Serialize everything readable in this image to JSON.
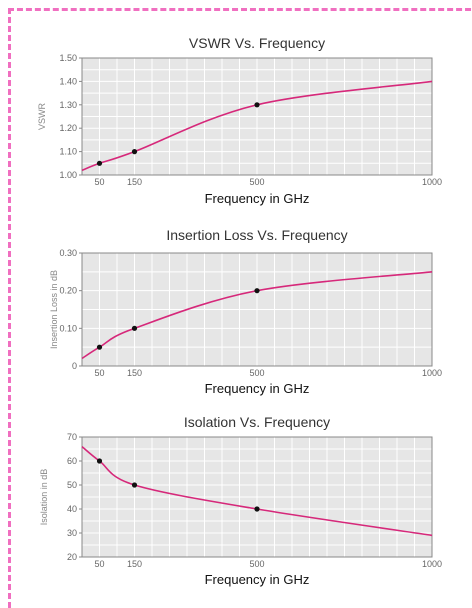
{
  "colors": {
    "frame_border": "#f06fc0",
    "curve": "#d6287a",
    "marker": "#111111",
    "plot_bg": "#e6e6e6",
    "grid": "#ffffff",
    "plot_border": "#888888"
  },
  "chart_data": [
    {
      "type": "line",
      "title": "VSWR Vs. Frequency",
      "xlabel": "Frequency in GHz",
      "ylabel": "VSWR",
      "xlim": [
        0,
        1000
      ],
      "ylim": [
        1.0,
        1.5
      ],
      "xticks": [
        50,
        150,
        500,
        1000
      ],
      "yticks": [
        1.0,
        1.1,
        1.2,
        1.3,
        1.4,
        1.5
      ],
      "ytick_labels": [
        "1.00",
        "1.10",
        "1.20",
        "1.30",
        "1.40",
        "1.50"
      ],
      "grid": true,
      "series": [
        {
          "x": [
            0,
            50,
            150,
            500,
            1000
          ],
          "y": [
            1.02,
            1.05,
            1.1,
            1.3,
            1.4
          ],
          "markers_x": [
            50,
            150,
            500
          ],
          "markers_y": [
            1.05,
            1.1,
            1.3
          ]
        }
      ]
    },
    {
      "type": "line",
      "title": "Insertion Loss Vs. Frequency",
      "xlabel": "Frequency in GHz",
      "ylabel": "Insertion Loss in dB",
      "xlim": [
        0,
        1000
      ],
      "ylim": [
        0,
        0.3
      ],
      "xticks": [
        50,
        150,
        500,
        1000
      ],
      "yticks": [
        0,
        0.1,
        0.2,
        0.3
      ],
      "ytick_labels": [
        "0",
        "0.10",
        "0.20",
        "0.30"
      ],
      "grid": true,
      "series": [
        {
          "x": [
            0,
            50,
            150,
            500,
            1000
          ],
          "y": [
            0.02,
            0.05,
            0.1,
            0.2,
            0.25
          ],
          "markers_x": [
            50,
            150,
            500
          ],
          "markers_y": [
            0.05,
            0.1,
            0.2
          ]
        }
      ]
    },
    {
      "type": "line",
      "title": "Isolation Vs. Frequency",
      "xlabel": "Frequency in GHz",
      "ylabel": "Isolation in dB",
      "xlim": [
        0,
        1000
      ],
      "ylim": [
        20,
        70
      ],
      "xticks": [
        50,
        150,
        500,
        1000
      ],
      "yticks": [
        20,
        30,
        40,
        50,
        60,
        70
      ],
      "ytick_labels": [
        "20",
        "30",
        "40",
        "50",
        "60",
        "70"
      ],
      "grid": true,
      "series": [
        {
          "x": [
            0,
            50,
            150,
            500,
            1000
          ],
          "y": [
            66,
            60,
            50,
            40,
            29
          ],
          "markers_x": [
            50,
            150,
            500
          ],
          "markers_y": [
            60,
            50,
            40
          ]
        }
      ]
    }
  ]
}
